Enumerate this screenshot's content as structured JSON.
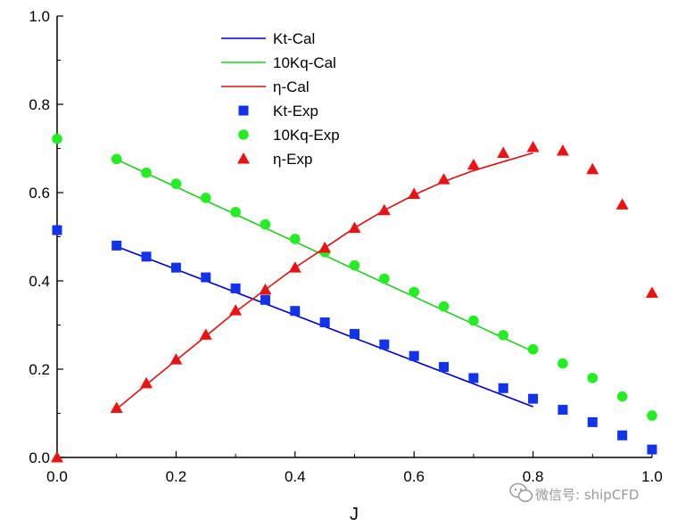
{
  "chart_data": {
    "type": "line",
    "title": "",
    "xlabel": "J",
    "ylabel": "",
    "xlim": [
      0.0,
      1.0
    ],
    "ylim": [
      0.0,
      1.0
    ],
    "x_ticks": [
      "0.0",
      "0.2",
      "0.4",
      "0.6",
      "0.8",
      "1.0"
    ],
    "y_ticks": [
      "0.0",
      "0.2",
      "0.4",
      "0.6",
      "0.8",
      "1.0"
    ],
    "grid": false,
    "legend_position": "top-center",
    "series": [
      {
        "name": "Kt-Cal",
        "kind": "line",
        "color": "#0000cc",
        "x": [
          0.1,
          0.8
        ],
        "y": [
          0.478,
          0.115
        ]
      },
      {
        "name": "10Kq-Cal",
        "kind": "line",
        "color": "#22cc22",
        "x": [
          0.1,
          0.8
        ],
        "y": [
          0.675,
          0.24
        ]
      },
      {
        "name": "η-Cal",
        "kind": "line",
        "color": "#dd1111",
        "x": [
          0.1,
          0.15,
          0.2,
          0.25,
          0.3,
          0.35,
          0.4,
          0.45,
          0.5,
          0.55,
          0.6,
          0.65,
          0.7,
          0.75,
          0.8
        ],
        "y": [
          0.11,
          0.165,
          0.22,
          0.275,
          0.33,
          0.38,
          0.43,
          0.475,
          0.52,
          0.56,
          0.595,
          0.625,
          0.65,
          0.67,
          0.69
        ]
      },
      {
        "name": "Kt-Exp",
        "kind": "marker",
        "marker": "square",
        "color": "#1133ee",
        "x": [
          0.0,
          0.1,
          0.15,
          0.2,
          0.25,
          0.3,
          0.35,
          0.4,
          0.45,
          0.5,
          0.55,
          0.6,
          0.65,
          0.7,
          0.75,
          0.8,
          0.85,
          0.9,
          0.95,
          1.0
        ],
        "y": [
          0.515,
          0.48,
          0.455,
          0.43,
          0.408,
          0.383,
          0.357,
          0.332,
          0.306,
          0.28,
          0.256,
          0.23,
          0.205,
          0.18,
          0.157,
          0.133,
          0.108,
          0.08,
          0.05,
          0.018
        ]
      },
      {
        "name": "10Kq-Exp",
        "kind": "marker",
        "marker": "circle",
        "color": "#22ee22",
        "x": [
          0.0,
          0.1,
          0.15,
          0.2,
          0.25,
          0.3,
          0.35,
          0.4,
          0.45,
          0.5,
          0.55,
          0.6,
          0.65,
          0.7,
          0.75,
          0.8,
          0.85,
          0.9,
          0.95,
          1.0
        ],
        "y": [
          0.722,
          0.676,
          0.645,
          0.62,
          0.588,
          0.556,
          0.528,
          0.495,
          0.465,
          0.435,
          0.405,
          0.375,
          0.342,
          0.31,
          0.277,
          0.245,
          0.213,
          0.18,
          0.138,
          0.095
        ]
      },
      {
        "name": "η-Exp",
        "kind": "marker",
        "marker": "triangle",
        "color": "#ee1111",
        "x": [
          0.0,
          0.1,
          0.15,
          0.2,
          0.25,
          0.3,
          0.35,
          0.4,
          0.45,
          0.5,
          0.55,
          0.6,
          0.65,
          0.7,
          0.75,
          0.8,
          0.85,
          0.9,
          0.95,
          1.0
        ],
        "y": [
          0.0,
          0.112,
          0.168,
          0.222,
          0.278,
          0.333,
          0.38,
          0.43,
          0.475,
          0.52,
          0.56,
          0.597,
          0.63,
          0.663,
          0.69,
          0.703,
          0.695,
          0.653,
          0.573,
          0.373
        ]
      }
    ]
  },
  "watermark": {
    "icon": "wechat-icon",
    "text": "微信号: shipCFD"
  }
}
